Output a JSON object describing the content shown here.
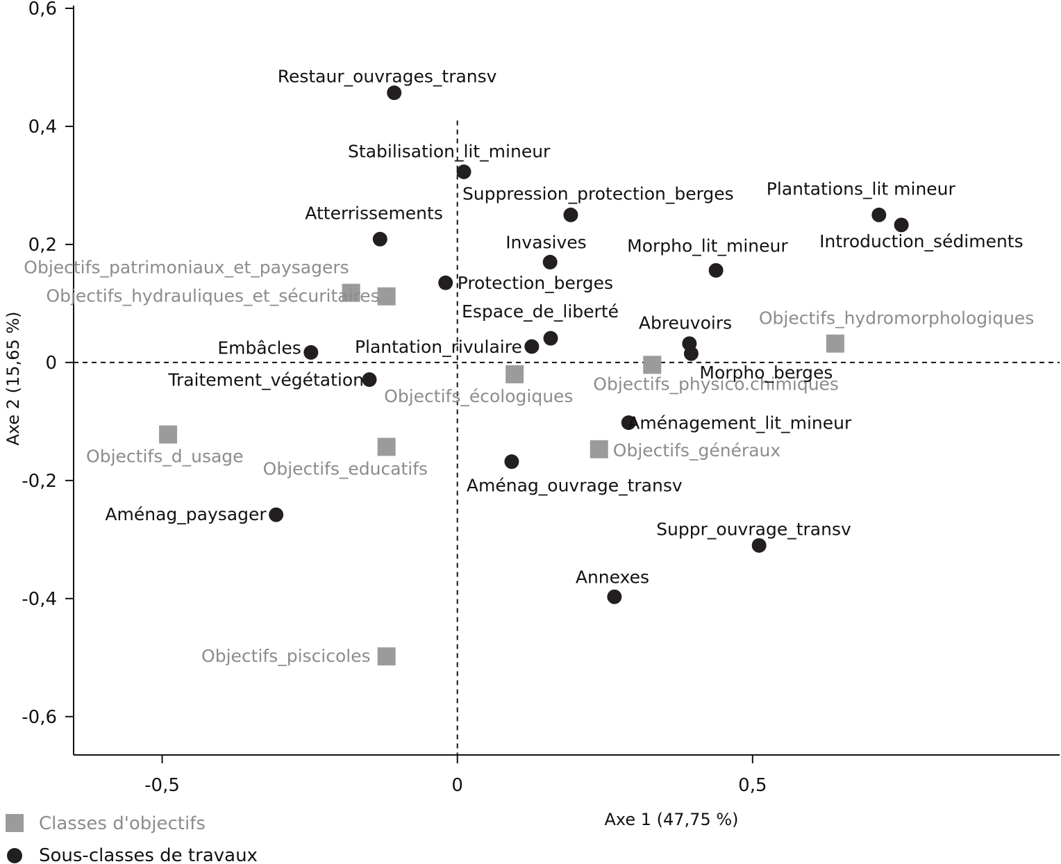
{
  "chart_data": {
    "type": "scatter",
    "xlabel": "Axe 1  (47,75 %)",
    "ylabel": "Axe 2  (15,65 %)",
    "xlim": [
      -0.65,
      1.02
    ],
    "ylim": [
      -0.665,
      0.6
    ],
    "xticks": [
      {
        "value": -0.5,
        "label": "-0,5"
      },
      {
        "value": 0,
        "label": "0"
      },
      {
        "value": 0.5,
        "label": "0,5"
      }
    ],
    "yticks": [
      {
        "value": 0.6,
        "label": "0,6"
      },
      {
        "value": 0.4,
        "label": "0,4"
      },
      {
        "value": 0.2,
        "label": "0,2"
      },
      {
        "value": 0,
        "label": "0"
      },
      {
        "value": -0.2,
        "label": "-0,2"
      },
      {
        "value": -0.4,
        "label": "-0,4"
      },
      {
        "value": -0.6,
        "label": "-0,6"
      }
    ],
    "reference_lines": {
      "x": 0,
      "y": 0,
      "style": "dashed"
    },
    "legend_position": "bottom-left",
    "series": [
      {
        "name": "Classes d'objectifs",
        "marker": "square",
        "color": "#9b9b9b",
        "label_color": "#8c8c8c",
        "points": [
          {
            "label": "Objectifs_patrimoniaux_et_paysagers",
            "x": -0.18,
            "y": 0.118
          },
          {
            "label": "Objectifs_hydrauliques_et_sécuritaires",
            "x": -0.12,
            "y": 0.112
          },
          {
            "label": "Objectifs_hydromorphologiques",
            "x": 0.64,
            "y": 0.032
          },
          {
            "label": "Objectifs_physico.chimiques",
            "x": 0.33,
            "y": -0.004
          },
          {
            "label": "Objectifs_écologiques",
            "x": 0.097,
            "y": -0.02
          },
          {
            "label": "Objectifs_d_usage",
            "x": -0.49,
            "y": -0.122
          },
          {
            "label": "Objectifs_educatifs",
            "x": -0.12,
            "y": -0.143
          },
          {
            "label": "Objectifs_généraux",
            "x": 0.24,
            "y": -0.147
          },
          {
            "label": "Objectifs_piscicoles",
            "x": -0.12,
            "y": -0.498
          }
        ]
      },
      {
        "name": "Sous-classes de travaux",
        "marker": "circle",
        "color": "#231f20",
        "label_color": "#111111",
        "points": [
          {
            "label": "Restaur_ouvrages_transv",
            "x": -0.107,
            "y": 0.457
          },
          {
            "label": "Stabilisation_lit_mineur",
            "x": 0.011,
            "y": 0.323
          },
          {
            "label": "Suppression_protection_berges",
            "x": 0.192,
            "y": 0.25
          },
          {
            "label": "Plantations_lit mineur",
            "x": 0.714,
            "y": 0.25
          },
          {
            "label": "Introduction_sédiments",
            "x": 0.752,
            "y": 0.233
          },
          {
            "label": "Atterrissements",
            "x": -0.131,
            "y": 0.209
          },
          {
            "label": "Invasives",
            "x": 0.157,
            "y": 0.17
          },
          {
            "label": "Morpho_lit_mineur",
            "x": 0.438,
            "y": 0.156
          },
          {
            "label": "Protection_berges",
            "x": -0.02,
            "y": 0.135
          },
          {
            "label": "Espace_de_liberté",
            "x": 0.158,
            "y": 0.041
          },
          {
            "label": "Plantation_rivulaire",
            "x": 0.126,
            "y": 0.027
          },
          {
            "label": "Abreuvoirs",
            "x": 0.393,
            "y": 0.032
          },
          {
            "label": "Morpho_berges",
            "x": 0.396,
            "y": 0.015
          },
          {
            "label": "Embâcles",
            "x": -0.248,
            "y": 0.017
          },
          {
            "label": "Traitement_végétation",
            "x": -0.149,
            "y": -0.029
          },
          {
            "label": "Aménagement_lit_mineur",
            "x": 0.29,
            "y": -0.102
          },
          {
            "label": "Aménag_ouvrage_transv",
            "x": 0.092,
            "y": -0.168
          },
          {
            "label": "Aménag_paysager",
            "x": -0.307,
            "y": -0.258
          },
          {
            "label": "Suppr_ouvrage_transv",
            "x": 0.511,
            "y": -0.31
          },
          {
            "label": "Annexes",
            "x": 0.266,
            "y": -0.397
          }
        ]
      }
    ]
  }
}
